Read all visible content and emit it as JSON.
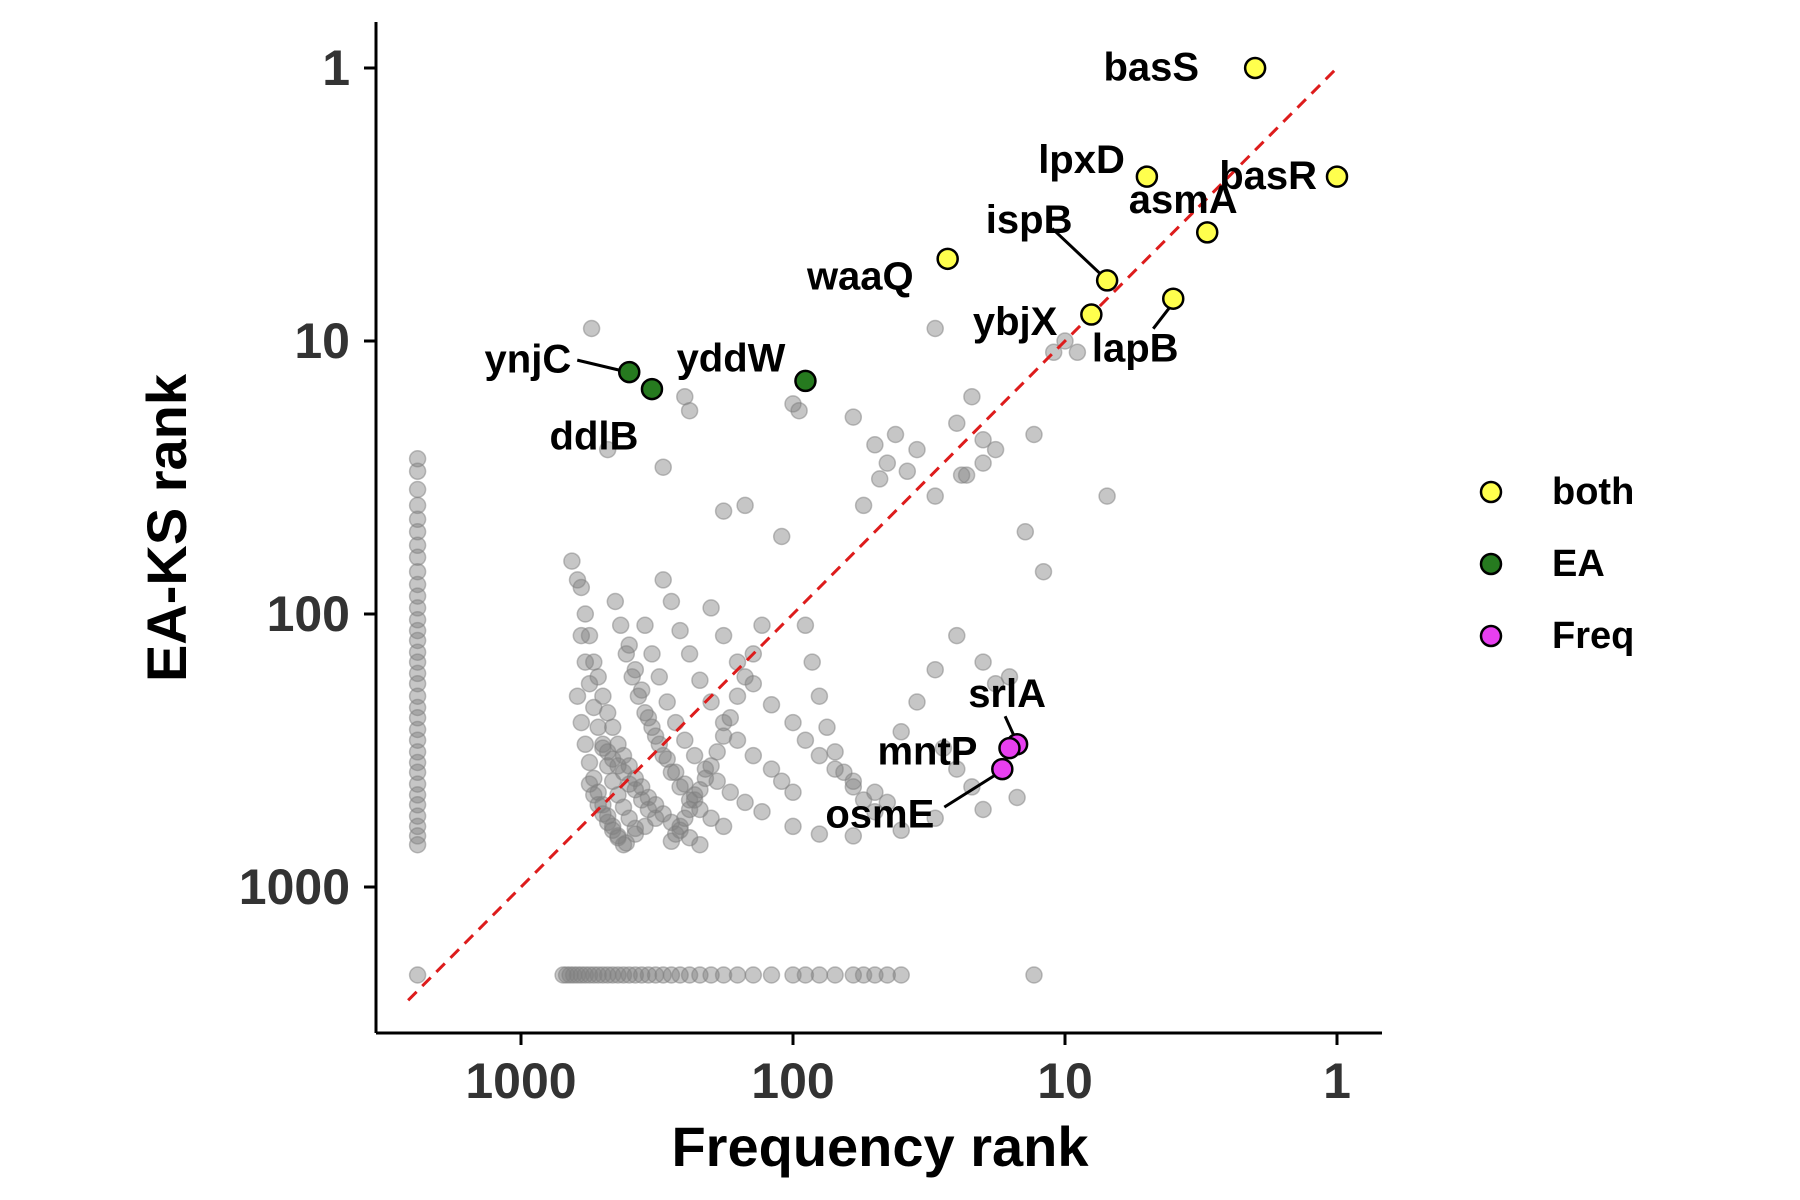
{
  "chart_data": {
    "type": "scatter",
    "xlabel": "Frequency rank",
    "ylabel": "EA-KS rank",
    "x_scale": "log-reversed",
    "y_scale": "log-reversed",
    "xlim": [
      4500,
      0.8
    ],
    "ylim": [
      4500,
      0.8
    ],
    "x_ticks": [
      {
        "value": 1000,
        "label": "1000"
      },
      {
        "value": 100,
        "label": "100"
      },
      {
        "value": 10,
        "label": "10"
      },
      {
        "value": 1,
        "label": "1"
      }
    ],
    "y_ticks": [
      {
        "value": 1,
        "label": "1"
      },
      {
        "value": 10,
        "label": "10"
      },
      {
        "value": 100,
        "label": "100"
      },
      {
        "value": 1000,
        "label": "1000"
      }
    ],
    "reference_line": {
      "from": [
        2600,
        2600
      ],
      "to": [
        1,
        1
      ],
      "color": "#dd1c1c",
      "style": "dashed"
    },
    "grid": false,
    "legend": {
      "position": "right",
      "entries": [
        {
          "label": "both",
          "color": "#ffff4d"
        },
        {
          "label": "EA",
          "color": "#267a1f"
        },
        {
          "label": "Freq",
          "color": "#e83ff0"
        }
      ]
    },
    "highlighted": [
      {
        "gene": "basS",
        "x": 2,
        "y": 1,
        "group": "both"
      },
      {
        "gene": "basR",
        "x": 1,
        "y": 2.5,
        "group": "both"
      },
      {
        "gene": "lpxD",
        "x": 5,
        "y": 2.5,
        "group": "both"
      },
      {
        "gene": "asmA",
        "x": 3,
        "y": 4,
        "group": "both"
      },
      {
        "gene": "ispB",
        "x": 7,
        "y": 6,
        "group": "both"
      },
      {
        "gene": "lapB",
        "x": 4,
        "y": 7,
        "group": "both"
      },
      {
        "gene": "ybjX",
        "x": 8,
        "y": 8,
        "group": "both"
      },
      {
        "gene": "waaQ",
        "x": 27,
        "y": 5,
        "group": "both"
      },
      {
        "gene": "ynjC",
        "x": 400,
        "y": 13,
        "group": "EA"
      },
      {
        "gene": "ddlB",
        "x": 330,
        "y": 15,
        "group": "EA"
      },
      {
        "gene": "yddW",
        "x": 90,
        "y": 14,
        "group": "EA"
      },
      {
        "gene": "srlA",
        "x": 15,
        "y": 300,
        "group": "Freq"
      },
      {
        "gene": "mntP",
        "x": 16,
        "y": 310,
        "group": "Freq"
      },
      {
        "gene": "osmE",
        "x": 17,
        "y": 370,
        "group": "Freq"
      }
    ],
    "background_points": {
      "color": "#808080",
      "points": [
        [
          2400,
          27
        ],
        [
          2400,
          30
        ],
        [
          2400,
          35
        ],
        [
          2400,
          40
        ],
        [
          2400,
          45
        ],
        [
          2400,
          50
        ],
        [
          2400,
          56
        ],
        [
          2400,
          62
        ],
        [
          2400,
          70
        ],
        [
          2400,
          78
        ],
        [
          2400,
          86
        ],
        [
          2400,
          95
        ],
        [
          2400,
          105
        ],
        [
          2400,
          115
        ],
        [
          2400,
          125
        ],
        [
          2400,
          138
        ],
        [
          2400,
          150
        ],
        [
          2400,
          165
        ],
        [
          2400,
          180
        ],
        [
          2400,
          200
        ],
        [
          2400,
          220
        ],
        [
          2400,
          240
        ],
        [
          2400,
          265
        ],
        [
          2400,
          290
        ],
        [
          2400,
          320
        ],
        [
          2400,
          350
        ],
        [
          2400,
          380
        ],
        [
          2400,
          420
        ],
        [
          2400,
          460
        ],
        [
          2400,
          500
        ],
        [
          2400,
          550
        ],
        [
          2400,
          600
        ],
        [
          2400,
          650
        ],
        [
          2400,
          700
        ],
        [
          2400,
          2100
        ],
        [
          700,
          2100
        ],
        [
          680,
          2100
        ],
        [
          660,
          2100
        ],
        [
          640,
          2100
        ],
        [
          620,
          2100
        ],
        [
          600,
          2100
        ],
        [
          580,
          2100
        ],
        [
          560,
          2100
        ],
        [
          540,
          2100
        ],
        [
          520,
          2100
        ],
        [
          500,
          2100
        ],
        [
          480,
          2100
        ],
        [
          460,
          2100
        ],
        [
          440,
          2100
        ],
        [
          420,
          2100
        ],
        [
          400,
          2100
        ],
        [
          380,
          2100
        ],
        [
          360,
          2100
        ],
        [
          340,
          2100
        ],
        [
          320,
          2100
        ],
        [
          300,
          2100
        ],
        [
          280,
          2100
        ],
        [
          260,
          2100
        ],
        [
          240,
          2100
        ],
        [
          220,
          2100
        ],
        [
          200,
          2100
        ],
        [
          180,
          2100
        ],
        [
          160,
          2100
        ],
        [
          140,
          2100
        ],
        [
          120,
          2100
        ],
        [
          100,
          2100
        ],
        [
          90,
          2100
        ],
        [
          80,
          2100
        ],
        [
          70,
          2100
        ],
        [
          60,
          2100
        ],
        [
          55,
          2100
        ],
        [
          50,
          2100
        ],
        [
          45,
          2100
        ],
        [
          40,
          2100
        ],
        [
          13,
          2100
        ],
        [
          550,
          9
        ],
        [
          250,
          16
        ],
        [
          240,
          18
        ],
        [
          480,
          25
        ],
        [
          300,
          29
        ],
        [
          180,
          42
        ],
        [
          150,
          40
        ],
        [
          110,
          52
        ],
        [
          100,
          17
        ],
        [
          95,
          18
        ],
        [
          60,
          19
        ],
        [
          55,
          40
        ],
        [
          50,
          24
        ],
        [
          48,
          32
        ],
        [
          45,
          28
        ],
        [
          42,
          22
        ],
        [
          38,
          30
        ],
        [
          35,
          25
        ],
        [
          30,
          37
        ],
        [
          30,
          9
        ],
        [
          25,
          20
        ],
        [
          24,
          31
        ],
        [
          23,
          31
        ],
        [
          22,
          16
        ],
        [
          20,
          23
        ],
        [
          20,
          28
        ],
        [
          18,
          25
        ],
        [
          14,
          50
        ],
        [
          13,
          22
        ],
        [
          12,
          70
        ],
        [
          11,
          11
        ],
        [
          9,
          11
        ],
        [
          7,
          37
        ],
        [
          10,
          10
        ],
        [
          650,
          64
        ],
        [
          620,
          75
        ],
        [
          600,
          80
        ],
        [
          580,
          100
        ],
        [
          560,
          120
        ],
        [
          540,
          150
        ],
        [
          520,
          170
        ],
        [
          500,
          200
        ],
        [
          480,
          230
        ],
        [
          460,
          260
        ],
        [
          440,
          300
        ],
        [
          420,
          330
        ],
        [
          400,
          360
        ],
        [
          380,
          400
        ],
        [
          360,
          430
        ],
        [
          340,
          470
        ],
        [
          320,
          500
        ],
        [
          300,
          540
        ],
        [
          280,
          580
        ],
        [
          260,
          620
        ],
        [
          240,
          660
        ],
        [
          220,
          700
        ],
        [
          620,
          200
        ],
        [
          600,
          250
        ],
        [
          580,
          300
        ],
        [
          560,
          350
        ],
        [
          540,
          400
        ],
        [
          520,
          450
        ],
        [
          500,
          500
        ],
        [
          480,
          550
        ],
        [
          460,
          600
        ],
        [
          440,
          650
        ],
        [
          420,
          700
        ],
        [
          600,
          120
        ],
        [
          580,
          150
        ],
        [
          560,
          180
        ],
        [
          540,
          220
        ],
        [
          520,
          260
        ],
        [
          500,
          310
        ],
        [
          480,
          360
        ],
        [
          460,
          410
        ],
        [
          440,
          460
        ],
        [
          420,
          510
        ],
        [
          400,
          560
        ],
        [
          380,
          610
        ],
        [
          400,
          130
        ],
        [
          380,
          160
        ],
        [
          360,
          190
        ],
        [
          340,
          240
        ],
        [
          320,
          280
        ],
        [
          300,
          330
        ],
        [
          280,
          380
        ],
        [
          260,
          430
        ],
        [
          240,
          480
        ],
        [
          220,
          520
        ],
        [
          200,
          560
        ],
        [
          180,
          600
        ],
        [
          350,
          110
        ],
        [
          330,
          140
        ],
        [
          310,
          170
        ],
        [
          290,
          210
        ],
        [
          270,
          250
        ],
        [
          250,
          290
        ],
        [
          230,
          330
        ],
        [
          210,
          370
        ],
        [
          190,
          410
        ],
        [
          170,
          450
        ],
        [
          150,
          490
        ],
        [
          130,
          530
        ],
        [
          450,
          90
        ],
        [
          430,
          110
        ],
        [
          410,
          140
        ],
        [
          390,
          170
        ],
        [
          370,
          200
        ],
        [
          350,
          230
        ],
        [
          330,
          260
        ],
        [
          310,
          300
        ],
        [
          290,
          340
        ],
        [
          270,
          380
        ],
        [
          250,
          420
        ],
        [
          230,
          460
        ],
        [
          300,
          75
        ],
        [
          280,
          90
        ],
        [
          260,
          115
        ],
        [
          240,
          140
        ],
        [
          220,
          175
        ],
        [
          200,
          210
        ],
        [
          180,
          250
        ],
        [
          160,
          290
        ],
        [
          140,
          330
        ],
        [
          120,
          370
        ],
        [
          110,
          410
        ],
        [
          100,
          450
        ],
        [
          200,
          95
        ],
        [
          180,
          120
        ],
        [
          160,
          150
        ],
        [
          140,
          180
        ],
        [
          120,
          215
        ],
        [
          100,
          250
        ],
        [
          90,
          290
        ],
        [
          80,
          330
        ],
        [
          70,
          370
        ],
        [
          60,
          410
        ],
        [
          50,
          450
        ],
        [
          45,
          490
        ],
        [
          500,
          300
        ],
        [
          480,
          320
        ],
        [
          460,
          340
        ],
        [
          440,
          360
        ],
        [
          420,
          380
        ],
        [
          400,
          420
        ],
        [
          380,
          440
        ],
        [
          360,
          480
        ],
        [
          340,
          520
        ],
        [
          320,
          560
        ],
        [
          560,
          420
        ],
        [
          540,
          460
        ],
        [
          520,
          500
        ],
        [
          500,
          540
        ],
        [
          480,
          580
        ],
        [
          460,
          620
        ],
        [
          440,
          660
        ],
        [
          410,
          690
        ],
        [
          380,
          640
        ],
        [
          350,
          600
        ],
        [
          90,
          110
        ],
        [
          85,
          150
        ],
        [
          80,
          200
        ],
        [
          75,
          260
        ],
        [
          70,
          320
        ],
        [
          65,
          380
        ],
        [
          60,
          430
        ],
        [
          55,
          480
        ],
        [
          50,
          530
        ],
        [
          30,
          160
        ],
        [
          25,
          120
        ],
        [
          20,
          150
        ],
        [
          18,
          180
        ],
        [
          16,
          170
        ],
        [
          35,
          210
        ],
        [
          40,
          270
        ],
        [
          28,
          310
        ],
        [
          25,
          370
        ],
        [
          22,
          430
        ],
        [
          20,
          520
        ],
        [
          15,
          470
        ],
        [
          30,
          560
        ],
        [
          40,
          620
        ],
        [
          60,
          650
        ],
        [
          80,
          640
        ],
        [
          100,
          600
        ],
        [
          130,
          110
        ],
        [
          140,
          140
        ],
        [
          150,
          170
        ],
        [
          160,
          200
        ],
        [
          170,
          240
        ],
        [
          180,
          280
        ],
        [
          190,
          320
        ],
        [
          200,
          360
        ],
        [
          210,
          400
        ],
        [
          220,
          440
        ],
        [
          230,
          480
        ],
        [
          240,
          520
        ],
        [
          250,
          560
        ],
        [
          260,
          600
        ],
        [
          270,
          640
        ],
        [
          280,
          680
        ]
      ]
    }
  }
}
